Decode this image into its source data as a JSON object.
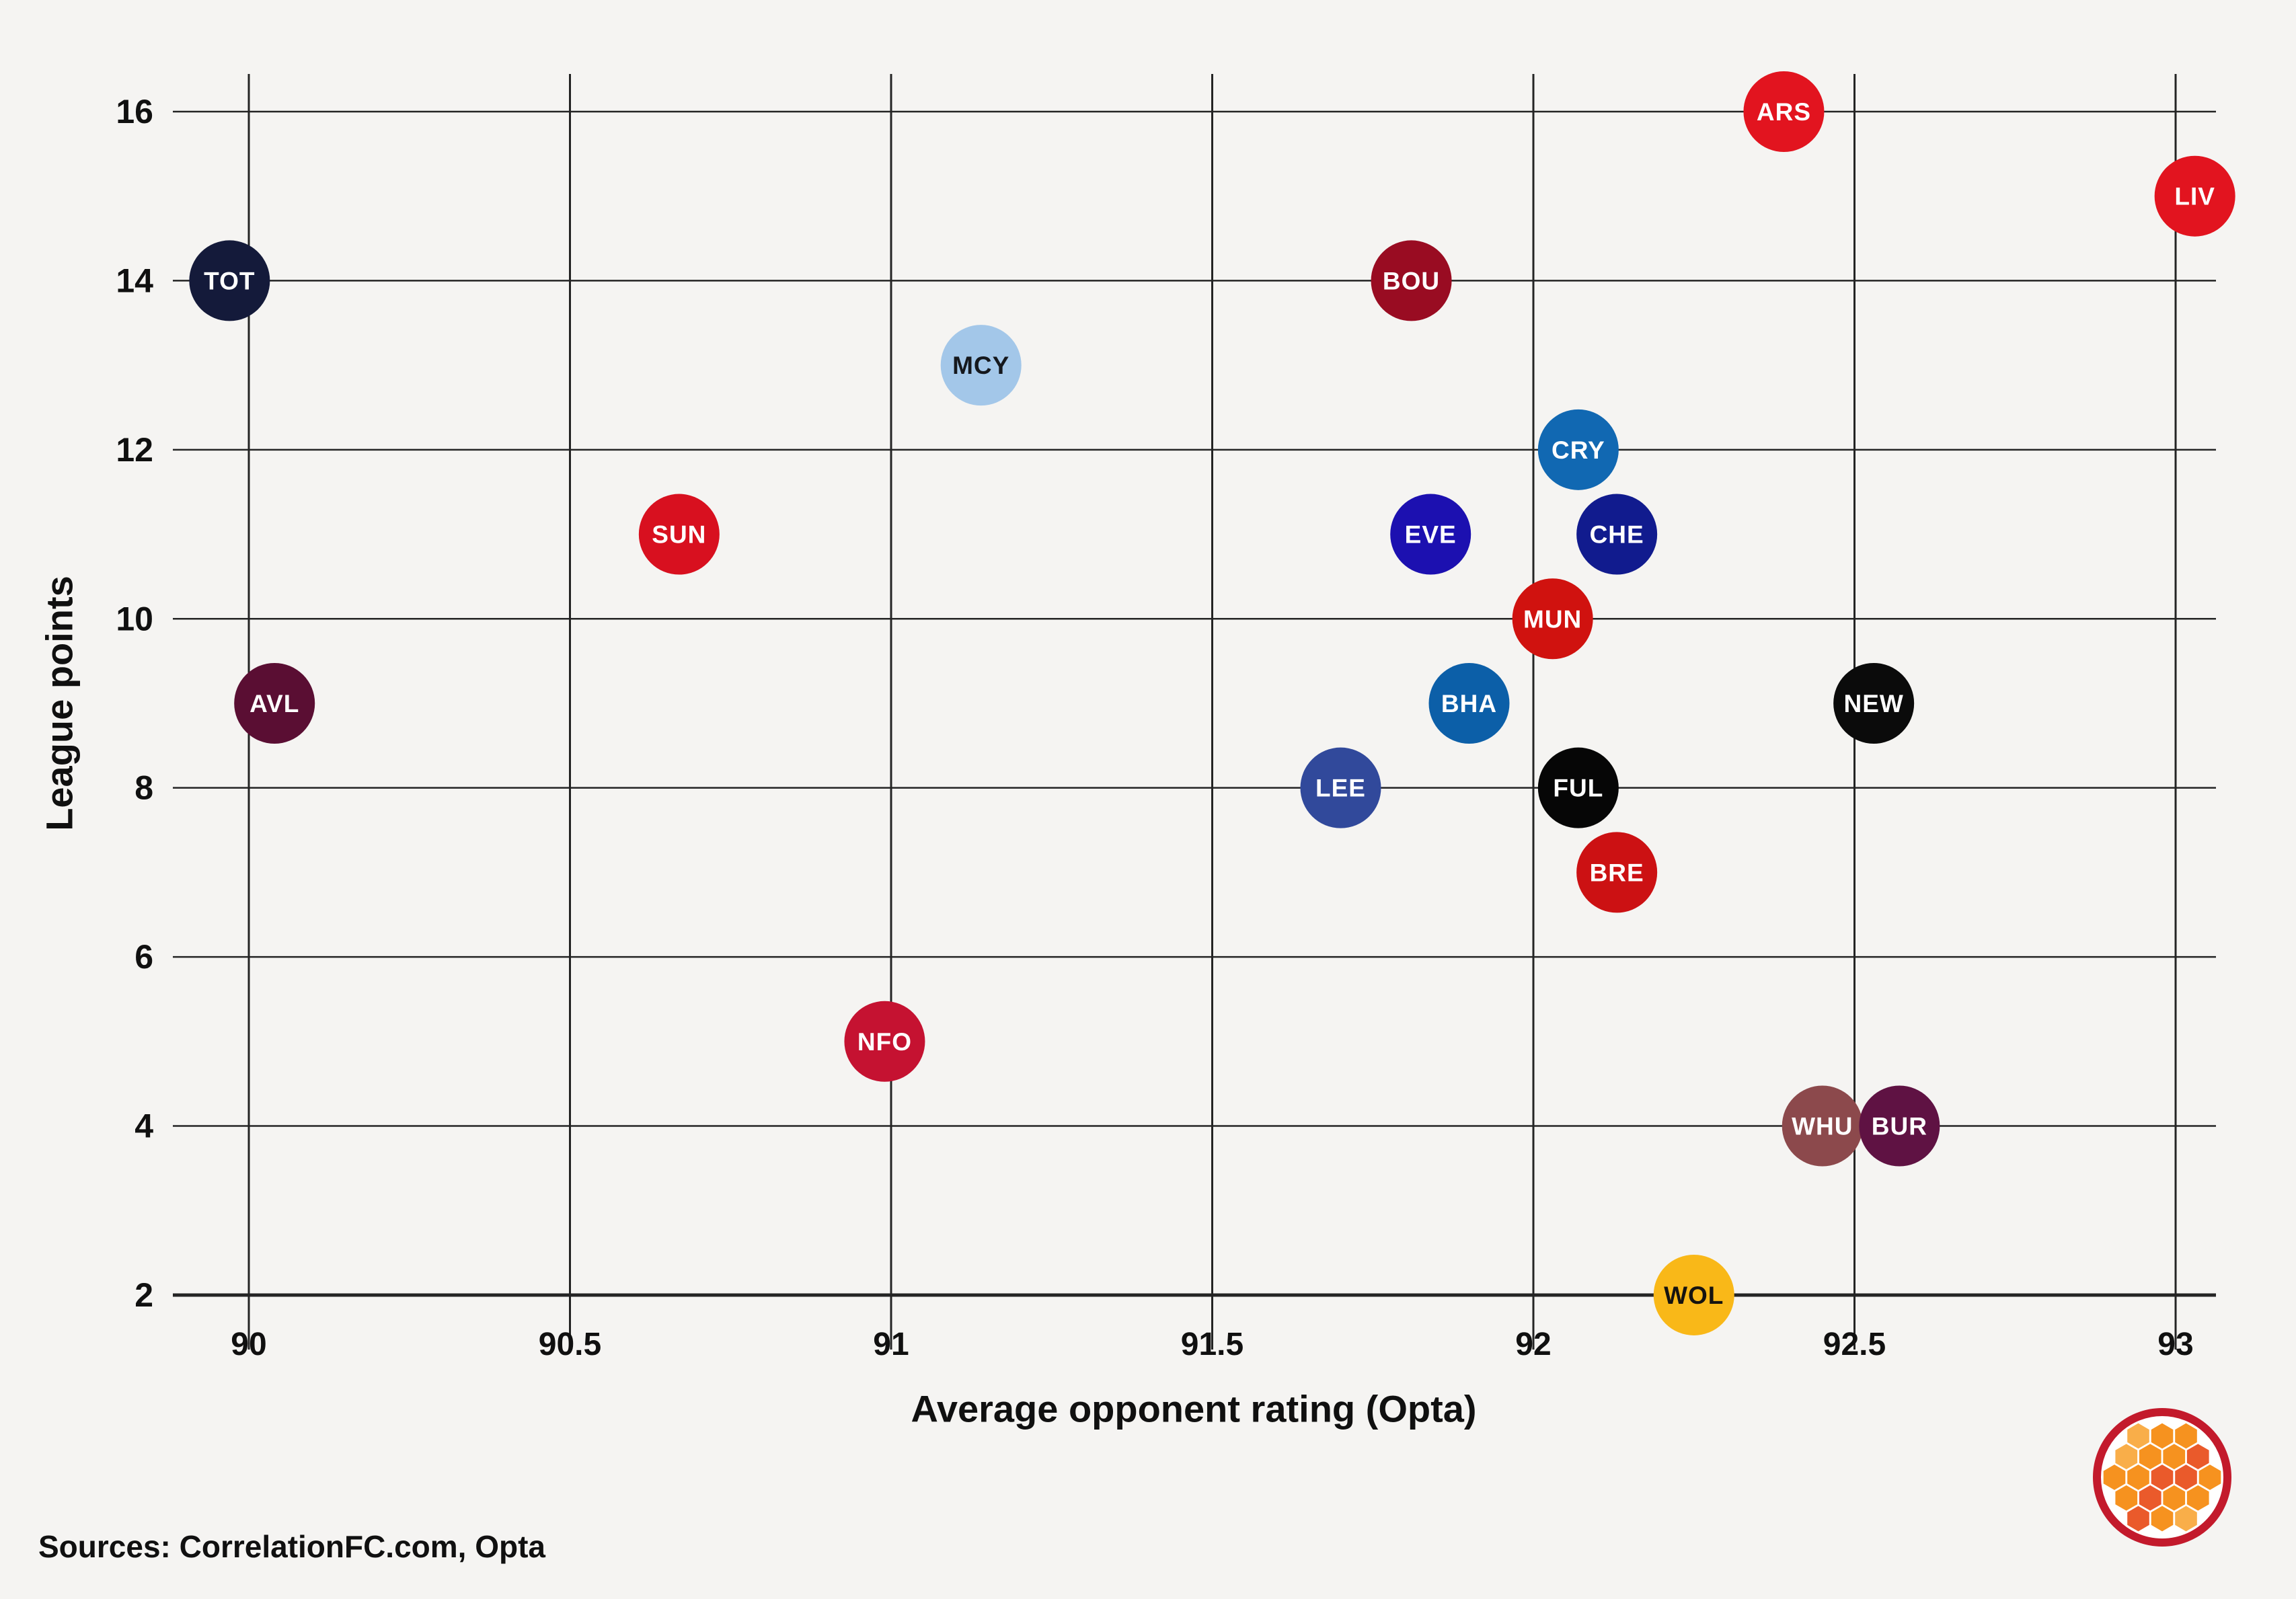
{
  "style": {
    "background": "#F5F4F2",
    "grid_color": "#242424",
    "text_color": "#101010"
  },
  "chart_data": {
    "type": "scatter",
    "title": "",
    "xlabel": "Average opponent rating (Opta)",
    "ylabel": "League points",
    "xlim": [
      89.88,
      93.19
    ],
    "ylim": [
      1.35,
      16.45
    ],
    "grid": "on",
    "x_ticks": [
      {
        "value": 90,
        "label": "90"
      },
      {
        "value": 90.5,
        "label": "90.5"
      },
      {
        "value": 91,
        "label": "91"
      },
      {
        "value": 91.5,
        "label": "91.5"
      },
      {
        "value": 92,
        "label": "92"
      },
      {
        "value": 92.5,
        "label": "92.5"
      },
      {
        "value": 93,
        "label": "93"
      }
    ],
    "y_ticks": [
      {
        "value": 16,
        "label": "16"
      },
      {
        "value": 14,
        "label": "14"
      },
      {
        "value": 12,
        "label": "12"
      },
      {
        "value": 10,
        "label": "10"
      },
      {
        "value": 8,
        "label": "8"
      },
      {
        "value": 6,
        "label": "6"
      },
      {
        "value": 4,
        "label": "4"
      },
      {
        "value": 2,
        "label": "2"
      }
    ],
    "points": [
      {
        "team": "TOT",
        "x": 89.97,
        "y": 14,
        "color": "#141A3A",
        "text_color": "#FFFFFF"
      },
      {
        "team": "AVL",
        "x": 90.04,
        "y": 9,
        "color": "#5A0E33",
        "text_color": "#FFFFFF"
      },
      {
        "team": "SUN",
        "x": 90.67,
        "y": 11,
        "color": "#D8101F",
        "text_color": "#FFFFFF"
      },
      {
        "team": "NFO",
        "x": 90.99,
        "y": 5,
        "color": "#C51231",
        "text_color": "#FFFFFF"
      },
      {
        "team": "MCY",
        "x": 91.14,
        "y": 13,
        "color": "#A3C7E9",
        "text_color": "#15181D"
      },
      {
        "team": "LEE",
        "x": 91.7,
        "y": 8,
        "color": "#31499B",
        "text_color": "#FFFFFF"
      },
      {
        "team": "BOU",
        "x": 91.81,
        "y": 14,
        "color": "#990C22",
        "text_color": "#FFFFFF"
      },
      {
        "team": "EVE",
        "x": 91.84,
        "y": 11,
        "color": "#1C10B0",
        "text_color": "#FFFFFF"
      },
      {
        "team": "BHA",
        "x": 91.9,
        "y": 9,
        "color": "#0C5FA8",
        "text_color": "#FFFFFF"
      },
      {
        "team": "MUN",
        "x": 92.03,
        "y": 10,
        "color": "#D0120F",
        "text_color": "#FFFFFF"
      },
      {
        "team": "CRY",
        "x": 92.07,
        "y": 12,
        "color": "#1168B2",
        "text_color": "#FFFFFF"
      },
      {
        "team": "FUL",
        "x": 92.07,
        "y": 8,
        "color": "#060606",
        "text_color": "#FFFFFF"
      },
      {
        "team": "CHE",
        "x": 92.13,
        "y": 11,
        "color": "#111B8E",
        "text_color": "#FFFFFF"
      },
      {
        "team": "BRE",
        "x": 92.13,
        "y": 7,
        "color": "#CC1113",
        "text_color": "#FFFFFF"
      },
      {
        "team": "WOL",
        "x": 92.25,
        "y": 2,
        "color": "#F9B818",
        "text_color": "#151310"
      },
      {
        "team": "ARS",
        "x": 92.39,
        "y": 16,
        "color": "#E2141F",
        "text_color": "#FFFFFF"
      },
      {
        "team": "WHU",
        "x": 92.45,
        "y": 4,
        "color": "#8C494C",
        "text_color": "#FFFFFF"
      },
      {
        "team": "NEW",
        "x": 92.53,
        "y": 9,
        "color": "#0B0B0B",
        "text_color": "#FFFFFF"
      },
      {
        "team": "BUR",
        "x": 92.57,
        "y": 4,
        "color": "#5F1243",
        "text_color": "#FFFFFF"
      },
      {
        "team": "LIV",
        "x": 93.03,
        "y": 15,
        "color": "#E2141F",
        "text_color": "#FFFFFF"
      }
    ]
  },
  "footer": {
    "sources": "Sources: CorrelationFC.com, Opta"
  },
  "logo": {
    "name": "correlationfc-honeycomb-logo",
    "ring_color": "#C31A2C",
    "bg_color": "#FFFFFF",
    "hexes": [
      {
        "q": 0,
        "r": -2,
        "c": "#F9AE49"
      },
      {
        "q": 1,
        "r": -2,
        "c": "#F6921F"
      },
      {
        "q": 2,
        "r": -2,
        "c": "#F6921F"
      },
      {
        "q": -1,
        "r": -1,
        "c": "#F9AE49"
      },
      {
        "q": 0,
        "r": -1,
        "c": "#F6921F"
      },
      {
        "q": 1,
        "r": -1,
        "c": "#F6921F"
      },
      {
        "q": 2,
        "r": -1,
        "c": "#EA5A2B"
      },
      {
        "q": -2,
        "r": 0,
        "c": "#F6921F"
      },
      {
        "q": -1,
        "r": 0,
        "c": "#F6921F"
      },
      {
        "q": 0,
        "r": 0,
        "c": "#EA5A2B"
      },
      {
        "q": 1,
        "r": 0,
        "c": "#EA5A2B"
      },
      {
        "q": 2,
        "r": 0,
        "c": "#F6921F"
      },
      {
        "q": -2,
        "r": 1,
        "c": "#F6921F"
      },
      {
        "q": -1,
        "r": 1,
        "c": "#EA5A2B"
      },
      {
        "q": 0,
        "r": 1,
        "c": "#F6921F"
      },
      {
        "q": 1,
        "r": 1,
        "c": "#F6921F"
      },
      {
        "q": -2,
        "r": 2,
        "c": "#EA5A2B"
      },
      {
        "q": -1,
        "r": 2,
        "c": "#F6921F"
      },
      {
        "q": 0,
        "r": 2,
        "c": "#F9AE49"
      }
    ]
  }
}
